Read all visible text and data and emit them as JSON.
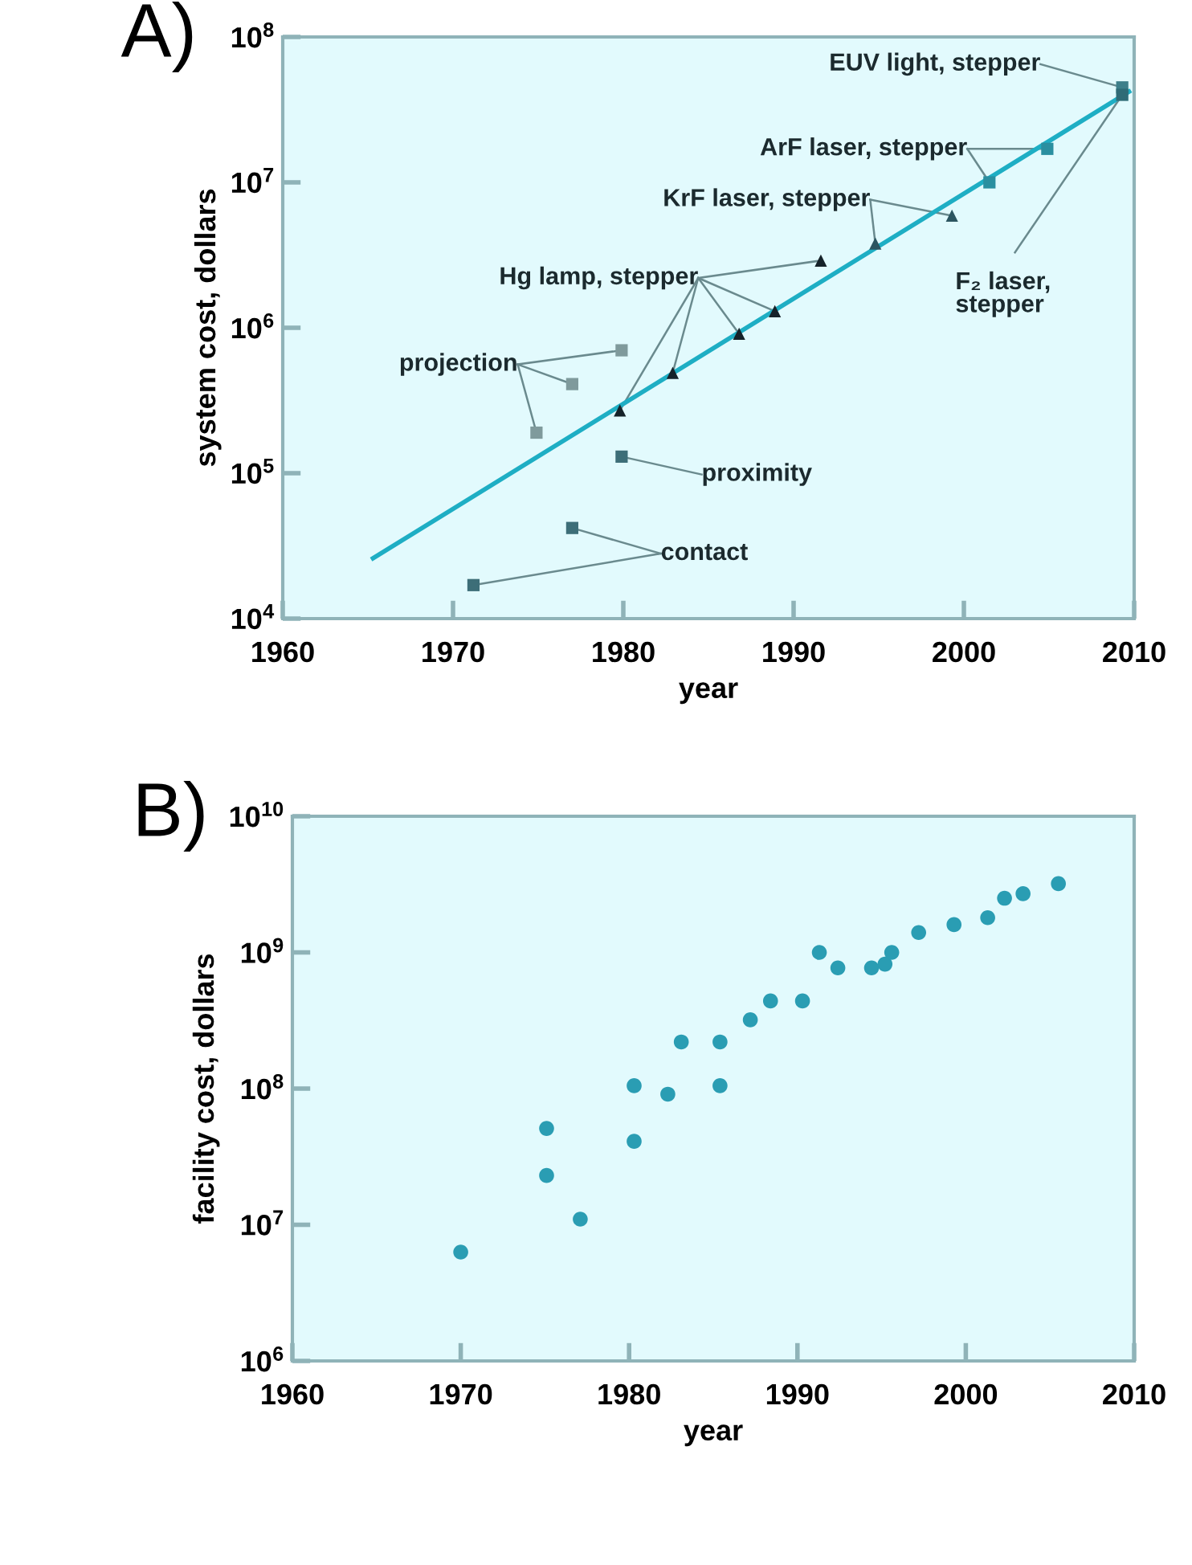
{
  "chart_data": [
    {
      "type": "scatter",
      "title": "A)",
      "xlabel": "year",
      "ylabel": "system cost, dollars",
      "log": "y",
      "grid": false,
      "legend": false,
      "xlim": [
        1960,
        2010
      ],
      "xticks": [
        1960,
        1970,
        1980,
        1990,
        2000,
        2010
      ],
      "ylim": [
        10000,
        100000000
      ],
      "yticks": [
        {
          "value": 10000,
          "label": "10$^{4}$"
        },
        {
          "value": 100000,
          "label": "10$^{5}$"
        },
        {
          "value": 1000000,
          "label": "10$^{6}$"
        },
        {
          "value": 10000000,
          "label": "10$^{7}$"
        },
        {
          "value": 100000000,
          "label": "10$^{8}$"
        }
      ],
      "series": [
        {
          "type": "line",
          "color": "#1eaec4",
          "marker": "none",
          "x": [
            1965.3,
            2009.7
          ],
          "values": [
            26000,
            42000000
          ]
        },
        {
          "name": "contact",
          "color": "#3d6e78",
          "marker": "square",
          "x": [
            1971.2,
            1977.0
          ],
          "values": [
            17000,
            42000
          ]
        },
        {
          "name": "proximity",
          "color": "#3d6e78",
          "marker": "square",
          "x": [
            1979.9
          ],
          "values": [
            130000
          ]
        },
        {
          "name": "projection",
          "color": "#7f9a9c",
          "marker": "square",
          "x": [
            1974.9,
            1977.0,
            1979.9
          ],
          "values": [
            190000,
            410000,
            700000
          ]
        },
        {
          "name": "Hg lamp, stepper",
          "color": "#152229",
          "marker": "triangle",
          "x": [
            1979.8,
            1982.9,
            1986.8,
            1988.9,
            1991.6
          ],
          "values": [
            270000,
            490000,
            910000,
            1300000,
            2900000
          ]
        },
        {
          "name": "KrF laser, stepper",
          "color": "#2c5560",
          "marker": "triangle",
          "x": [
            1994.8,
            1999.3
          ],
          "values": [
            3800000,
            5900000
          ]
        },
        {
          "name": "ArF laser, stepper",
          "color": "#2a8fa0",
          "marker": "square",
          "x": [
            2001.5,
            2004.9
          ],
          "values": [
            10000000,
            17000000
          ]
        },
        {
          "name": "EUV light, stepper",
          "color": "#3d7f8a",
          "marker": "square",
          "x": [
            2009.3
          ],
          "values": [
            45000000
          ]
        },
        {
          "name": "F₂ laser,\nstepper",
          "color": "#2f6b76",
          "marker": "square",
          "x": [
            2009.3
          ],
          "values": [
            40000000
          ]
        }
      ]
    },
    {
      "type": "scatter",
      "title": "B)",
      "xlabel": "year",
      "ylabel": "facility cost, dollars",
      "log": "y",
      "grid": false,
      "legend": false,
      "marker": "circle",
      "color": "#2a9db3",
      "xlim": [
        1960,
        2010
      ],
      "xticks": [
        1960,
        1970,
        1980,
        1990,
        2000,
        2010
      ],
      "ylim": [
        1000000,
        10000000000
      ],
      "yticks": [
        {
          "value": 1000000,
          "label": "10$^{6}$"
        },
        {
          "value": 10000000,
          "label": "10$^{7}$"
        },
        {
          "value": 100000000,
          "label": "10$^{8}$"
        },
        {
          "value": 1000000000,
          "label": "10$^{9}$"
        },
        {
          "value": 10000000000,
          "label": "10$^{10}$"
        }
      ],
      "x": [
        1970.0,
        1975.1,
        1975.1,
        1977.1,
        1980.3,
        1980.3,
        1982.3,
        1983.1,
        1985.4,
        1985.4,
        1987.2,
        1988.4,
        1990.3,
        1991.3,
        1992.4,
        1994.4,
        1995.2,
        1995.6,
        1997.2,
        1999.3,
        2001.3,
        2002.3,
        2003.4,
        2005.5
      ],
      "values": [
        6300000,
        51000000,
        23000000,
        11000000,
        105000000,
        41000000,
        91000000,
        220000000,
        220000000,
        105000000,
        320000000,
        440000000,
        440000000,
        1000000000,
        770000000,
        770000000,
        820000000,
        1000000000,
        1400000000,
        1600000000,
        1800000000,
        2500000000,
        2700000000,
        3200000000
      ]
    }
  ]
}
